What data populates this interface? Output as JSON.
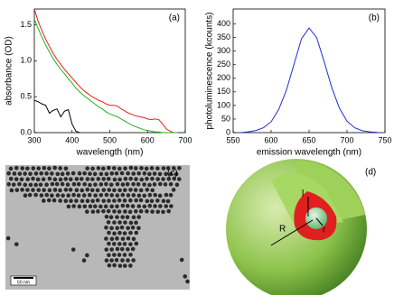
{
  "chart_data": [
    {
      "type": "line",
      "annotation": "(a)",
      "x_label": "wavelength (nm)",
      "y_label": "absorbance (OD)",
      "x": [
        300,
        310,
        320,
        330,
        340,
        350,
        360,
        370,
        380,
        390,
        400,
        410,
        420,
        430,
        440,
        450,
        460,
        470,
        480,
        490,
        500,
        510,
        520,
        530,
        540,
        550,
        560,
        570,
        580,
        590,
        600,
        610,
        620,
        630,
        640,
        650,
        660,
        670,
        680
      ],
      "series": [
        {
          "color": "#000000",
          "values": [
            0.45,
            0.43,
            0.4,
            0.38,
            0.27,
            0.31,
            0.33,
            0.22,
            0.3,
            0.32,
            0.12,
            0.02,
            0.0,
            null,
            null,
            null,
            null,
            null,
            null,
            null,
            null,
            null,
            null,
            null,
            null,
            null,
            null,
            null,
            null,
            null,
            null,
            null,
            null,
            null,
            null,
            null,
            null,
            null,
            null
          ]
        },
        {
          "color": "#e8201c",
          "values": [
            1.72,
            1.55,
            1.42,
            1.3,
            1.2,
            1.1,
            1.02,
            0.95,
            0.88,
            0.82,
            0.76,
            0.7,
            0.64,
            0.59,
            0.55,
            0.51,
            0.48,
            0.45,
            0.43,
            0.4,
            0.38,
            0.38,
            0.37,
            0.33,
            0.3,
            0.27,
            0.25,
            0.23,
            0.22,
            0.21,
            0.19,
            0.18,
            0.19,
            0.18,
            0.12,
            0.05,
            0.02,
            0.0,
            0.0
          ]
        },
        {
          "color": "#22b422",
          "values": [
            1.58,
            1.45,
            1.33,
            1.22,
            1.12,
            1.03,
            0.95,
            0.88,
            0.82,
            0.75,
            0.69,
            0.62,
            0.57,
            0.52,
            0.48,
            0.44,
            0.4,
            0.36,
            0.33,
            0.29,
            0.26,
            0.24,
            0.22,
            0.19,
            0.16,
            0.13,
            0.1,
            0.08,
            0.06,
            0.04,
            0.03,
            0.02,
            0.01,
            0.01,
            0.0,
            0.0,
            0.0,
            0.0,
            0.0
          ]
        }
      ],
      "xlim": [
        300,
        700
      ],
      "xticks": [
        300,
        400,
        500,
        600,
        700
      ],
      "ylim": [
        0,
        1.72
      ],
      "yticks": [
        {
          "value": 0,
          "label": "0.0"
        },
        0.5,
        {
          "value": 1,
          "label": "1.0"
        },
        1.5
      ]
    },
    {
      "type": "line",
      "annotation": "(b)",
      "x_label": "emission wavelength (nm)",
      "y_label": "photoluminescence (kcounts)",
      "x": [
        560,
        570,
        580,
        590,
        600,
        610,
        620,
        630,
        640,
        650,
        660,
        670,
        680,
        690,
        700,
        710,
        720,
        730,
        740
      ],
      "series": [
        {
          "color": "#1f2fd6",
          "values": [
            0,
            3,
            8,
            18,
            40,
            85,
            155,
            250,
            345,
            385,
            350,
            260,
            165,
            90,
            42,
            18,
            7,
            3,
            1
          ]
        }
      ],
      "xlim": [
        550,
        750
      ],
      "xticks": [
        550,
        600,
        650,
        700,
        750
      ],
      "ylim": [
        0,
        455
      ],
      "yticks": [
        0,
        50,
        100,
        150,
        200,
        250,
        300,
        350,
        400
      ]
    }
  ],
  "image": {
    "label": "(c)",
    "scale_bar": "50 nm"
  },
  "diagram": {
    "label": "(d)",
    "outer_radius": "R",
    "shell": "l",
    "core_radius": "r"
  }
}
